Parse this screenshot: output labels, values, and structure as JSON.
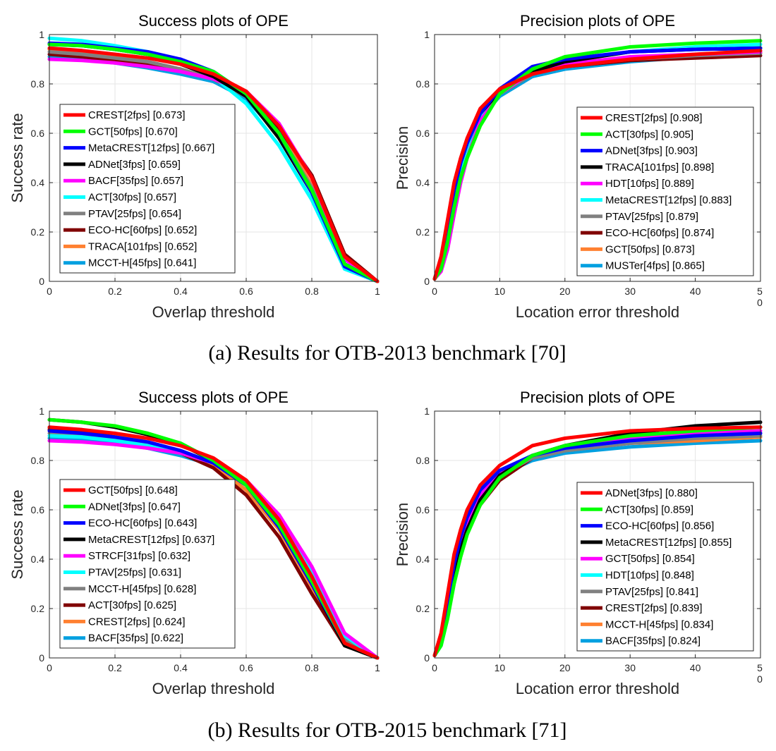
{
  "captions": [
    "(a)  Results for OTB-2013 benchmark [70]",
    "(b)  Results for OTB-2015 benchmark [71]"
  ],
  "colors": {
    "red": "#ff0000",
    "green": "#00ff00",
    "blue": "#0000ff",
    "black": "#000000",
    "magenta": "#ff00ff",
    "cyan": "#00ffff",
    "gray": "#808080",
    "darkred": "#800000",
    "orange": "#ff8030",
    "lightblue": "#00a0e0"
  },
  "chart_data": [
    {
      "type": "line",
      "title": "Success plots of OPE",
      "xlabel": "Overlap threshold",
      "ylabel": "Success rate",
      "xlim": [
        0,
        1
      ],
      "ylim": [
        0,
        1
      ],
      "grid": true,
      "legend": "bottom-left",
      "xticks": [
        "0",
        "0.2",
        "0.4",
        "0.6",
        "0.8",
        "1"
      ],
      "yticks": [
        "0",
        "0.2",
        "0.4",
        "0.6",
        "0.8",
        "1"
      ],
      "x": [
        0,
        0.1,
        0.2,
        0.3,
        0.4,
        0.5,
        0.6,
        0.7,
        0.8,
        0.9,
        1.0
      ],
      "series": [
        {
          "name": "CREST[2fps] [0.673]",
          "color": "red",
          "y": [
            0.945,
            0.935,
            0.92,
            0.905,
            0.88,
            0.84,
            0.77,
            0.63,
            0.42,
            0.1,
            0
          ]
        },
        {
          "name": "GCT[50fps] [0.670]",
          "color": "green",
          "y": [
            0.96,
            0.955,
            0.94,
            0.92,
            0.89,
            0.85,
            0.76,
            0.6,
            0.37,
            0.07,
            0
          ]
        },
        {
          "name": "MetaCREST[12fps] [0.667]",
          "color": "blue",
          "y": [
            0.965,
            0.96,
            0.945,
            0.93,
            0.9,
            0.85,
            0.76,
            0.6,
            0.36,
            0.06,
            0
          ]
        },
        {
          "name": "ADNet[3fps] [0.659]",
          "color": "black",
          "y": [
            0.96,
            0.955,
            0.94,
            0.92,
            0.88,
            0.83,
            0.75,
            0.58,
            0.36,
            0.07,
            0
          ]
        },
        {
          "name": "BACF[35fps] [0.657]",
          "color": "magenta",
          "y": [
            0.9,
            0.895,
            0.885,
            0.87,
            0.85,
            0.82,
            0.77,
            0.64,
            0.42,
            0.09,
            0
          ]
        },
        {
          "name": "ACT[30fps] [0.657]",
          "color": "cyan",
          "y": [
            0.985,
            0.975,
            0.955,
            0.93,
            0.89,
            0.83,
            0.72,
            0.55,
            0.33,
            0.05,
            0
          ]
        },
        {
          "name": "PTAV[25fps] [0.654]",
          "color": "gray",
          "y": [
            0.93,
            0.92,
            0.905,
            0.89,
            0.86,
            0.82,
            0.75,
            0.6,
            0.38,
            0.07,
            0
          ]
        },
        {
          "name": "ECO-HC[60fps] [0.652]",
          "color": "darkred",
          "y": [
            0.92,
            0.91,
            0.895,
            0.88,
            0.855,
            0.82,
            0.75,
            0.62,
            0.43,
            0.11,
            0
          ]
        },
        {
          "name": "TRACA[101fps] [0.652]",
          "color": "orange",
          "y": [
            0.94,
            0.93,
            0.91,
            0.89,
            0.86,
            0.82,
            0.75,
            0.61,
            0.39,
            0.07,
            0
          ]
        },
        {
          "name": "MCCT-H[45fps] [0.641]",
          "color": "lightblue",
          "y": [
            0.91,
            0.9,
            0.885,
            0.865,
            0.84,
            0.81,
            0.74,
            0.59,
            0.36,
            0.06,
            0
          ]
        }
      ]
    },
    {
      "type": "line",
      "title": "Precision plots of OPE",
      "xlabel": "Location error threshold",
      "ylabel": "Precision",
      "xlim": [
        0,
        50
      ],
      "ylim": [
        0,
        1
      ],
      "grid": true,
      "legend": "bottom-right",
      "xticks": [
        "0",
        "10",
        "20",
        "30",
        "40",
        "50"
      ],
      "yticks": [
        "0",
        "0.2",
        "0.4",
        "0.6",
        "0.8",
        "1"
      ],
      "x": [
        0,
        1,
        2,
        3,
        4,
        5,
        7,
        10,
        15,
        20,
        30,
        40,
        50
      ],
      "series": [
        {
          "name": "CREST[2fps] [0.908]",
          "color": "red",
          "y": [
            0.01,
            0.1,
            0.25,
            0.4,
            0.5,
            0.58,
            0.7,
            0.78,
            0.84,
            0.87,
            0.9,
            0.92,
            0.935
          ]
        },
        {
          "name": "ACT[30fps] [0.905]",
          "color": "green",
          "y": [
            0.01,
            0.05,
            0.16,
            0.3,
            0.42,
            0.5,
            0.63,
            0.76,
            0.86,
            0.91,
            0.95,
            0.965,
            0.975
          ]
        },
        {
          "name": "ADNet[3fps] [0.903]",
          "color": "blue",
          "y": [
            0.01,
            0.08,
            0.22,
            0.37,
            0.48,
            0.56,
            0.68,
            0.78,
            0.87,
            0.9,
            0.93,
            0.94,
            0.945
          ]
        },
        {
          "name": "TRACA[101fps] [0.898]",
          "color": "black",
          "y": [
            0.01,
            0.08,
            0.22,
            0.37,
            0.48,
            0.56,
            0.68,
            0.77,
            0.85,
            0.89,
            0.93,
            0.94,
            0.945
          ]
        },
        {
          "name": "HDT[10fps] [0.889]",
          "color": "magenta",
          "y": [
            0.01,
            0.04,
            0.13,
            0.27,
            0.4,
            0.5,
            0.65,
            0.76,
            0.85,
            0.88,
            0.91,
            0.92,
            0.93
          ]
        },
        {
          "name": "MetaCREST[12fps] [0.883]",
          "color": "cyan",
          "y": [
            0.01,
            0.05,
            0.17,
            0.32,
            0.44,
            0.53,
            0.66,
            0.76,
            0.85,
            0.89,
            0.93,
            0.95,
            0.96
          ]
        },
        {
          "name": "PTAV[25fps] [0.879]",
          "color": "gray",
          "y": [
            0.01,
            0.07,
            0.2,
            0.35,
            0.46,
            0.55,
            0.67,
            0.76,
            0.84,
            0.87,
            0.9,
            0.915,
            0.925
          ]
        },
        {
          "name": "ECO-HC[60fps] [0.874]",
          "color": "darkred",
          "y": [
            0.01,
            0.07,
            0.21,
            0.36,
            0.47,
            0.56,
            0.68,
            0.76,
            0.84,
            0.87,
            0.895,
            0.905,
            0.915
          ]
        },
        {
          "name": "GCT[50fps] [0.873]",
          "color": "orange",
          "y": [
            0.01,
            0.07,
            0.2,
            0.35,
            0.46,
            0.55,
            0.67,
            0.76,
            0.84,
            0.87,
            0.9,
            0.915,
            0.925
          ]
        },
        {
          "name": "MUSTer[4fps] [0.865]",
          "color": "lightblue",
          "y": [
            0.01,
            0.06,
            0.19,
            0.34,
            0.45,
            0.54,
            0.66,
            0.75,
            0.83,
            0.86,
            0.89,
            0.91,
            0.925
          ]
        }
      ]
    },
    {
      "type": "line",
      "title": "Success plots of OPE",
      "xlabel": "Overlap threshold",
      "ylabel": "Success rate",
      "xlim": [
        0,
        1
      ],
      "ylim": [
        0,
        1
      ],
      "grid": true,
      "legend": "bottom-left",
      "xticks": [
        "0",
        "0.2",
        "0.4",
        "0.6",
        "0.8",
        "1"
      ],
      "yticks": [
        "0",
        "0.2",
        "0.4",
        "0.6",
        "0.8",
        "1"
      ],
      "x": [
        0,
        0.1,
        0.2,
        0.3,
        0.4,
        0.5,
        0.6,
        0.7,
        0.8,
        0.9,
        1.0
      ],
      "series": [
        {
          "name": "GCT[50fps] [0.648]",
          "color": "red",
          "y": [
            0.935,
            0.925,
            0.91,
            0.89,
            0.86,
            0.81,
            0.72,
            0.56,
            0.33,
            0.06,
            0
          ]
        },
        {
          "name": "ADNet[3fps] [0.647]",
          "color": "green",
          "y": [
            0.965,
            0.955,
            0.94,
            0.91,
            0.87,
            0.8,
            0.7,
            0.54,
            0.31,
            0.06,
            0
          ]
        },
        {
          "name": "ECO-HC[60fps] [0.643]",
          "color": "blue",
          "y": [
            0.92,
            0.91,
            0.895,
            0.875,
            0.84,
            0.79,
            0.7,
            0.53,
            0.3,
            0.06,
            0
          ]
        },
        {
          "name": "MetaCREST[12fps] [0.637]",
          "color": "black",
          "y": [
            0.965,
            0.955,
            0.935,
            0.905,
            0.865,
            0.8,
            0.7,
            0.53,
            0.3,
            0.05,
            0
          ]
        },
        {
          "name": "STRCF[31fps] [0.632]",
          "color": "magenta",
          "y": [
            0.88,
            0.875,
            0.865,
            0.85,
            0.83,
            0.79,
            0.72,
            0.58,
            0.37,
            0.1,
            0
          ]
        },
        {
          "name": "PTAV[25fps] [0.631]",
          "color": "cyan",
          "y": [
            0.9,
            0.895,
            0.88,
            0.86,
            0.83,
            0.79,
            0.71,
            0.56,
            0.35,
            0.09,
            0
          ]
        },
        {
          "name": "MCCT-H[45fps] [0.628]",
          "color": "gray",
          "y": [
            0.91,
            0.9,
            0.885,
            0.865,
            0.83,
            0.79,
            0.7,
            0.55,
            0.33,
            0.07,
            0
          ]
        },
        {
          "name": "ACT[30fps] [0.625]",
          "color": "darkred",
          "y": [
            0.925,
            0.915,
            0.895,
            0.87,
            0.83,
            0.77,
            0.66,
            0.49,
            0.26,
            0.05,
            0
          ]
        },
        {
          "name": "CREST[2fps] [0.624]",
          "color": "orange",
          "y": [
            0.93,
            0.92,
            0.9,
            0.875,
            0.835,
            0.78,
            0.68,
            0.52,
            0.29,
            0.06,
            0
          ]
        },
        {
          "name": "BACF[35fps] [0.622]",
          "color": "lightblue",
          "y": [
            0.89,
            0.885,
            0.87,
            0.85,
            0.82,
            0.78,
            0.7,
            0.55,
            0.34,
            0.08,
            0
          ]
        }
      ]
    },
    {
      "type": "line",
      "title": "Precision plots of OPE",
      "xlabel": "Location error threshold",
      "ylabel": "Precision",
      "xlim": [
        0,
        50
      ],
      "ylim": [
        0,
        1
      ],
      "grid": true,
      "legend": "bottom-right",
      "xticks": [
        "0",
        "10",
        "20",
        "30",
        "40",
        "50"
      ],
      "yticks": [
        "0",
        "0.2",
        "0.4",
        "0.6",
        "0.8",
        "1"
      ],
      "x": [
        0,
        1,
        2,
        3,
        4,
        5,
        7,
        10,
        15,
        20,
        30,
        40,
        50
      ],
      "series": [
        {
          "name": "ADNet[3fps] [0.880]",
          "color": "red",
          "y": [
            0.01,
            0.1,
            0.26,
            0.42,
            0.52,
            0.6,
            0.7,
            0.78,
            0.86,
            0.89,
            0.92,
            0.93,
            0.935
          ]
        },
        {
          "name": "ACT[30fps] [0.859]",
          "color": "green",
          "y": [
            0.01,
            0.05,
            0.16,
            0.3,
            0.41,
            0.5,
            0.62,
            0.73,
            0.82,
            0.86,
            0.9,
            0.92,
            0.935
          ]
        },
        {
          "name": "ECO-HC[60fps] [0.856]",
          "color": "blue",
          "y": [
            0.01,
            0.08,
            0.23,
            0.38,
            0.49,
            0.57,
            0.68,
            0.76,
            0.82,
            0.85,
            0.88,
            0.9,
            0.91
          ]
        },
        {
          "name": "MetaCREST[12fps] [0.855]",
          "color": "black",
          "y": [
            0.01,
            0.06,
            0.18,
            0.33,
            0.44,
            0.52,
            0.64,
            0.74,
            0.82,
            0.86,
            0.91,
            0.94,
            0.955
          ]
        },
        {
          "name": "GCT[50fps] [0.854]",
          "color": "magenta",
          "y": [
            0.01,
            0.07,
            0.21,
            0.36,
            0.47,
            0.55,
            0.66,
            0.75,
            0.82,
            0.86,
            0.89,
            0.91,
            0.92
          ]
        },
        {
          "name": "HDT[10fps] [0.848]",
          "color": "cyan",
          "y": [
            0.01,
            0.05,
            0.16,
            0.31,
            0.43,
            0.52,
            0.64,
            0.74,
            0.82,
            0.85,
            0.88,
            0.9,
            0.91
          ]
        },
        {
          "name": "PTAV[25fps] [0.841]",
          "color": "gray",
          "y": [
            0.01,
            0.07,
            0.2,
            0.35,
            0.46,
            0.54,
            0.65,
            0.74,
            0.81,
            0.84,
            0.87,
            0.89,
            0.9
          ]
        },
        {
          "name": "CREST[2fps] [0.839]",
          "color": "darkred",
          "y": [
            0.01,
            0.06,
            0.18,
            0.32,
            0.43,
            0.51,
            0.62,
            0.72,
            0.81,
            0.85,
            0.88,
            0.9,
            0.91
          ]
        },
        {
          "name": "MCCT-H[45fps] [0.834]",
          "color": "orange",
          "y": [
            0.01,
            0.07,
            0.2,
            0.35,
            0.46,
            0.54,
            0.65,
            0.74,
            0.81,
            0.84,
            0.87,
            0.88,
            0.895
          ]
        },
        {
          "name": "BACF[35fps] [0.824]",
          "color": "lightblue",
          "y": [
            0.01,
            0.07,
            0.2,
            0.35,
            0.46,
            0.54,
            0.65,
            0.74,
            0.8,
            0.83,
            0.855,
            0.87,
            0.88
          ]
        }
      ]
    }
  ]
}
